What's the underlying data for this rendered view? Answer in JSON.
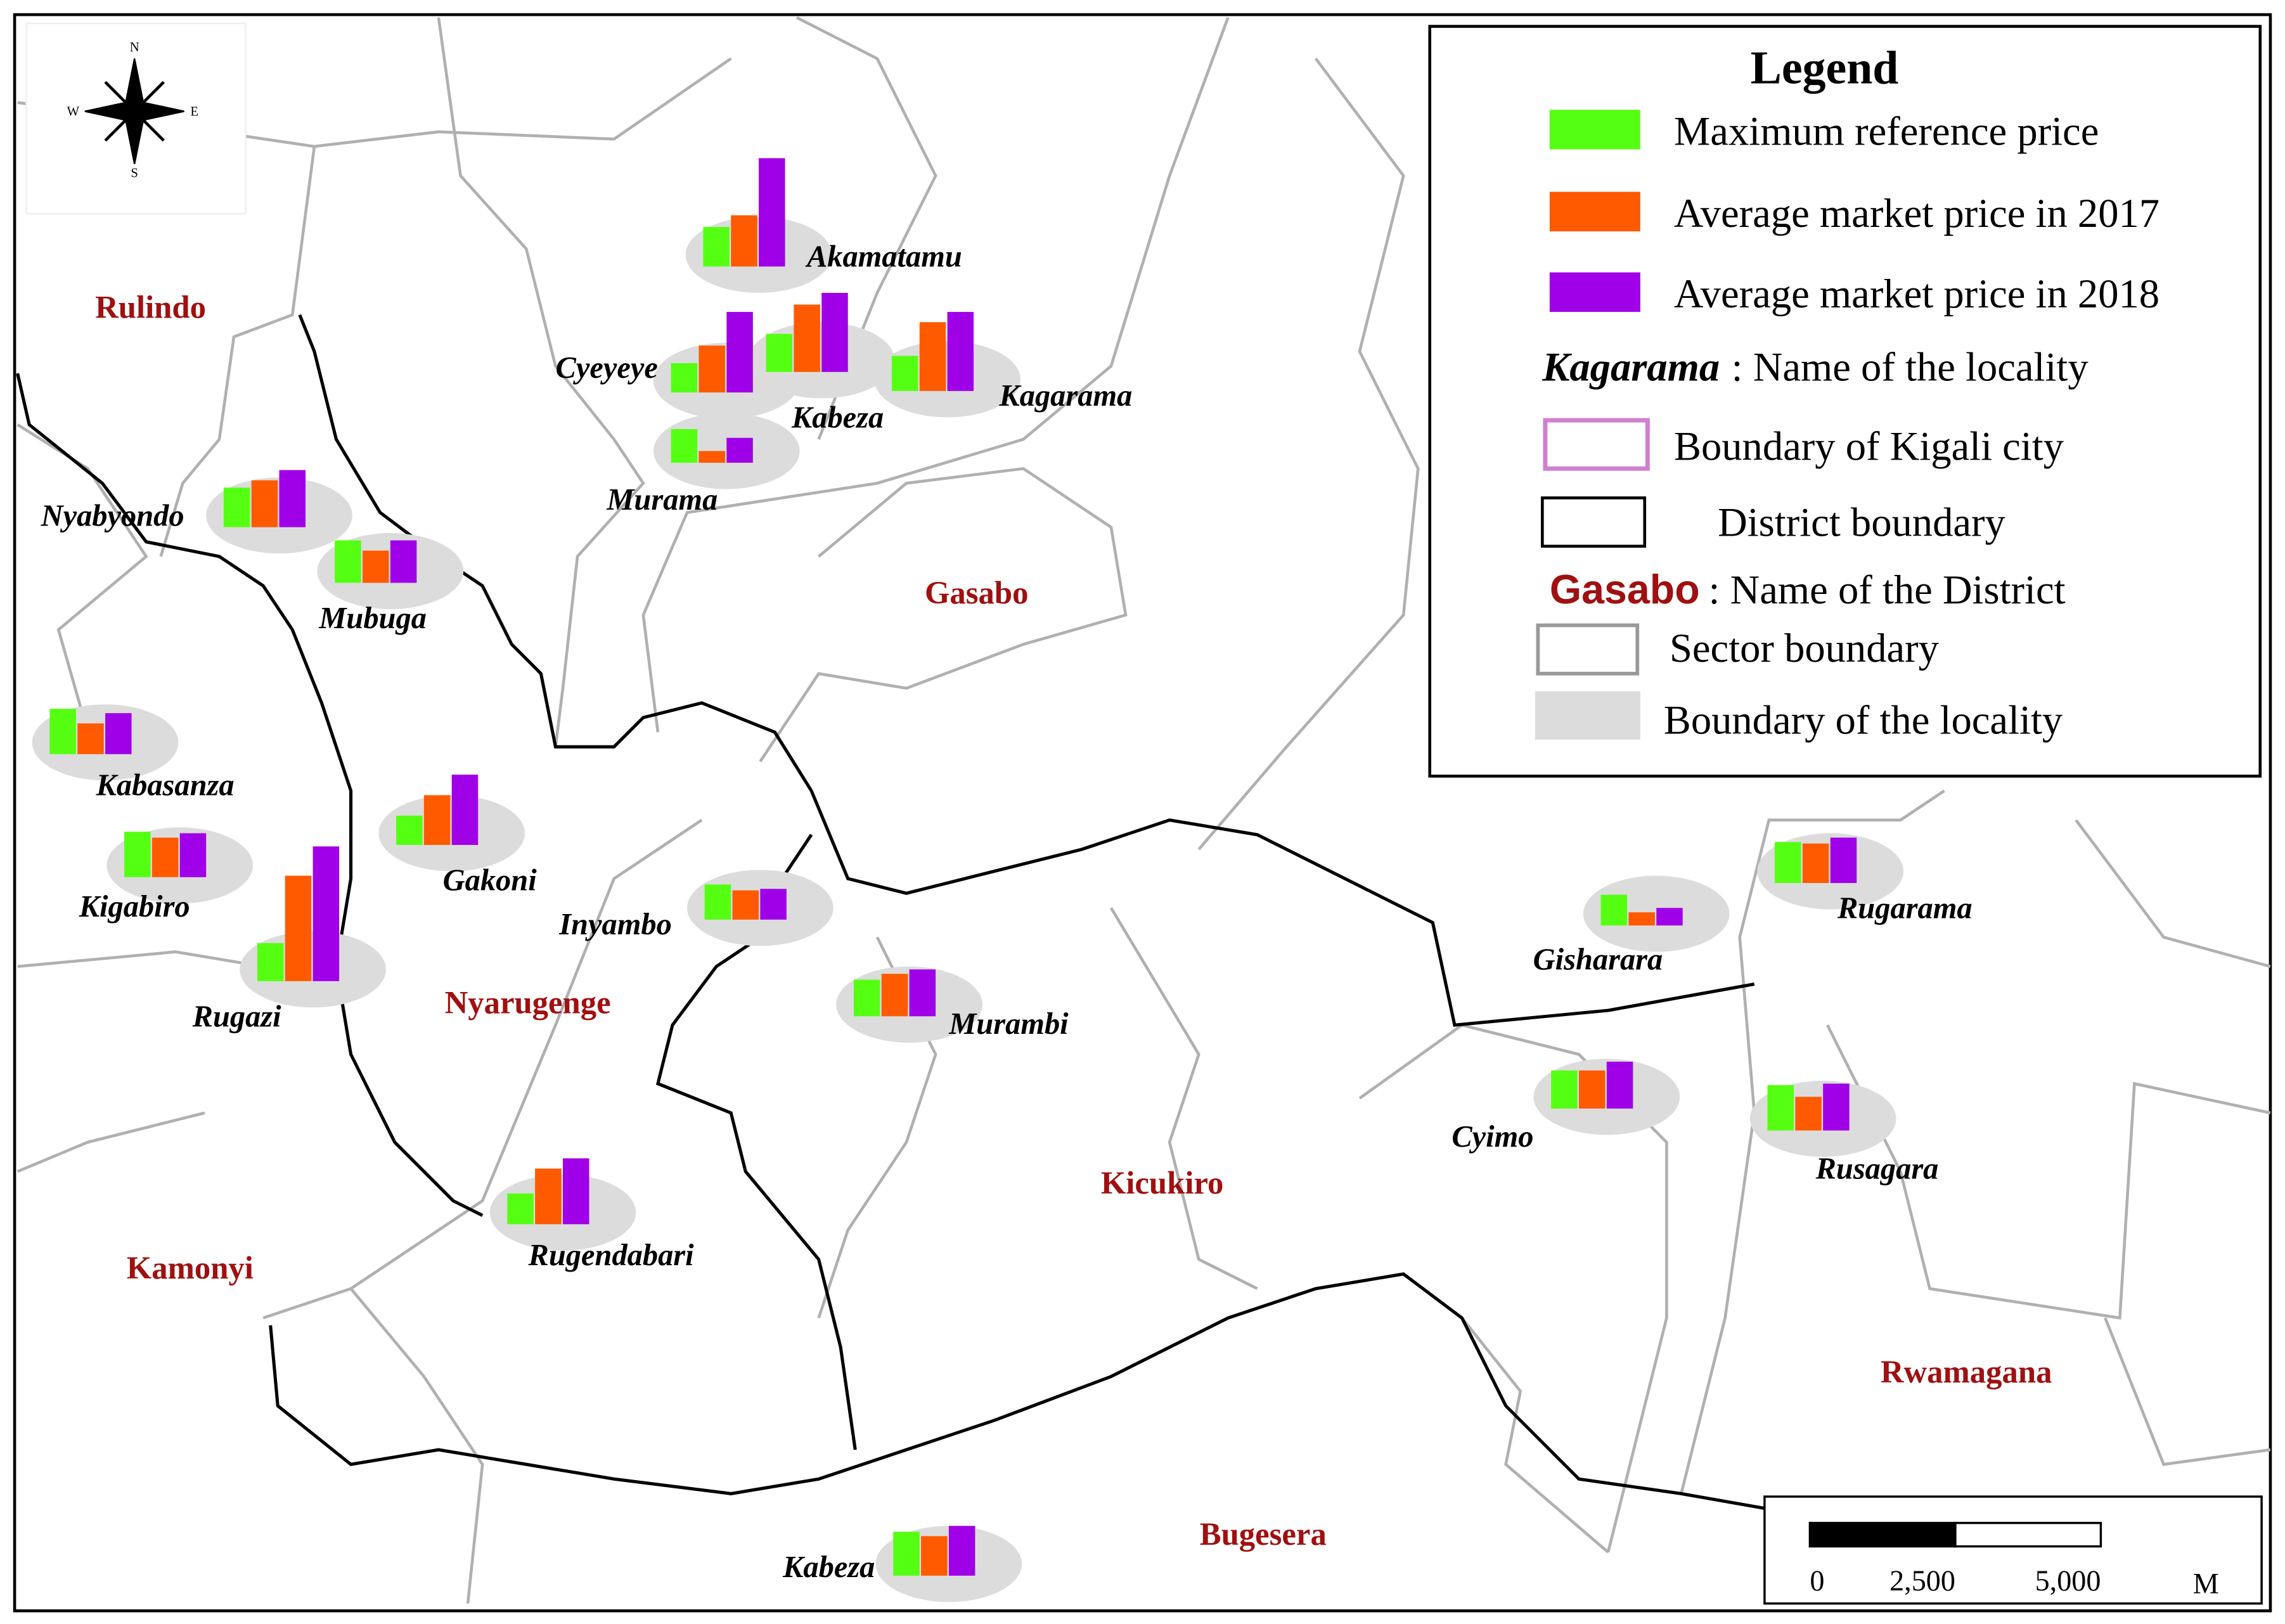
{
  "legend": {
    "title": "Legend",
    "series": [
      {
        "name": "Maximum reference price",
        "color": "#55ff11"
      },
      {
        "name": "Average market price in 2017",
        "color": "#ff5a00"
      },
      {
        "name": "Average market price in 2018",
        "color": "#a000e8"
      }
    ],
    "locality_key": {
      "sample": "Kagarama",
      "text": ": Name of the locality"
    },
    "city_boundary": "Boundary of Kigali city",
    "district_boundary": "District boundary",
    "district_key": {
      "sample": "Gasabo",
      "text": ": Name of the District"
    },
    "sector_boundary": "Sector boundary",
    "locality_boundary": "Boundary of the locality"
  },
  "compass": {
    "n": "N",
    "s": "S",
    "e": "E",
    "w": "W"
  },
  "districts": [
    "Rulindo",
    "Gasabo",
    "Nyarugenge",
    "Kicukiro",
    "Kamonyi",
    "Rwamagana",
    "Bugesera"
  ],
  "localities": [
    {
      "name": "Akamatamu",
      "values": [
        27,
        35,
        74
      ]
    },
    {
      "name": "Cyeyeye",
      "values": [
        20,
        32,
        55
      ]
    },
    {
      "name": "Kabeza",
      "values": [
        26,
        46,
        54
      ]
    },
    {
      "name": "Kagarama",
      "values": [
        24,
        47,
        54
      ]
    },
    {
      "name": "Murama",
      "values": [
        23,
        8,
        17
      ]
    },
    {
      "name": "Nyabyondo",
      "values": [
        27,
        32,
        39
      ]
    },
    {
      "name": "Mubuga",
      "values": [
        29,
        22,
        29
      ]
    },
    {
      "name": "Kabasanza",
      "values": [
        31,
        21,
        28
      ]
    },
    {
      "name": "Kigabiro",
      "values": [
        31,
        27,
        30
      ]
    },
    {
      "name": "Rugazi",
      "values": [
        26,
        72,
        92
      ]
    },
    {
      "name": "Gakoni",
      "values": [
        20,
        34,
        48
      ]
    },
    {
      "name": "Inyambo",
      "values": [
        24,
        20,
        21
      ]
    },
    {
      "name": "Murambi",
      "values": [
        25,
        29,
        32
      ]
    },
    {
      "name": "Rugendabari",
      "values": [
        21,
        38,
        45
      ]
    },
    {
      "name": "Kabeza",
      "values": [
        30,
        27,
        34
      ]
    },
    {
      "name": "Gisharara",
      "values": [
        21,
        9,
        12
      ]
    },
    {
      "name": "Cyimo",
      "values": [
        26,
        26,
        32
      ]
    },
    {
      "name": "Rugarama",
      "values": [
        28,
        27,
        31
      ]
    },
    {
      "name": "Rusagara",
      "values": [
        31,
        23,
        32
      ]
    }
  ],
  "scale_bar": {
    "ticks": [
      {
        "value": 0,
        "label": "0"
      },
      {
        "value": 2500,
        "label": "2,500"
      },
      {
        "value": 5000,
        "label": "5,000"
      }
    ],
    "unit": "M"
  }
}
